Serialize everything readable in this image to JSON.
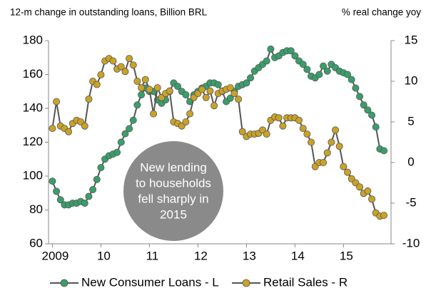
{
  "chart_data": {
    "type": "line",
    "title": "12-m change in outstanding loans, Billion BRL",
    "y2_label": "% real change yoy",
    "annotation": [
      "New lending",
      "to households",
      "fell sharply in",
      "2015"
    ],
    "xlim": [
      2008.92,
      2015.98
    ],
    "xticks": [
      {
        "value": 2009,
        "label": "2009"
      },
      {
        "value": 2010,
        "label": "10"
      },
      {
        "value": 2011,
        "label": "11"
      },
      {
        "value": 2012,
        "label": "12"
      },
      {
        "value": 2013,
        "label": "13"
      },
      {
        "value": 2014,
        "label": "14"
      },
      {
        "value": 2015,
        "label": "15"
      }
    ],
    "ylim": [
      60,
      180
    ],
    "yticks": [
      60,
      80,
      100,
      120,
      140,
      160,
      180
    ],
    "y2lim": [
      -10,
      15
    ],
    "y2ticks": [
      -10,
      -5,
      0,
      5,
      10,
      15
    ],
    "x_start": 2009,
    "x_step_months": 1,
    "series": [
      {
        "name": "New Consumer Loans - L",
        "color": "#3a9e6a",
        "axis": "y",
        "values": [
          97,
          91,
          86,
          83,
          83,
          84,
          84,
          85,
          84,
          88,
          92,
          98,
          105,
          110,
          112,
          113,
          114,
          120,
          125,
          128,
          133,
          142,
          148,
          152,
          150,
          150,
          145,
          143,
          145,
          150,
          155,
          153,
          150,
          148,
          144,
          148,
          150,
          152,
          153,
          155,
          155,
          154,
          150,
          144,
          146,
          150,
          153,
          154,
          155,
          158,
          162,
          164,
          166,
          168,
          175,
          170,
          171,
          173,
          174,
          174,
          171,
          168,
          166,
          163,
          159,
          158,
          160,
          165,
          162,
          166,
          164,
          162,
          161,
          160,
          157,
          152,
          147,
          142,
          139,
          136,
          129,
          116,
          115
        ]
      },
      {
        "name": "Retail Sales - R",
        "color": "#c9a227",
        "axis": "y2",
        "values": [
          4.2,
          7.5,
          4.5,
          4.2,
          3.8,
          4.8,
          5.2,
          5.0,
          4.5,
          7.8,
          10.0,
          9.6,
          10.8,
          12.5,
          12.8,
          12.5,
          11.5,
          11.8,
          11.2,
          12.8,
          12.0,
          10.0,
          9.2,
          10.2,
          9.0,
          6.0,
          9.2,
          8.0,
          8.5,
          8.8,
          5.0,
          4.8,
          4.5,
          5.0,
          6.0,
          8.0,
          8.5,
          9.0,
          8.0,
          8.8,
          7.0,
          8.5,
          8.8,
          9.0,
          9.2,
          8.5,
          7.8,
          3.8,
          3.2,
          3.5,
          3.5,
          3.6,
          4.0,
          3.5,
          5.2,
          5.6,
          5.5,
          4.5,
          5.5,
          5.5,
          5.5,
          5.2,
          4.2,
          3.5,
          2.5,
          -0.5,
          0.0,
          0.0,
          1.2,
          2.5,
          4.0,
          2.0,
          -0.5,
          -1.2,
          -2.0,
          -2.5,
          -3.0,
          -3.8,
          -3.5,
          -4.5,
          -6.2,
          -6.6,
          -6.5
        ]
      }
    ]
  }
}
